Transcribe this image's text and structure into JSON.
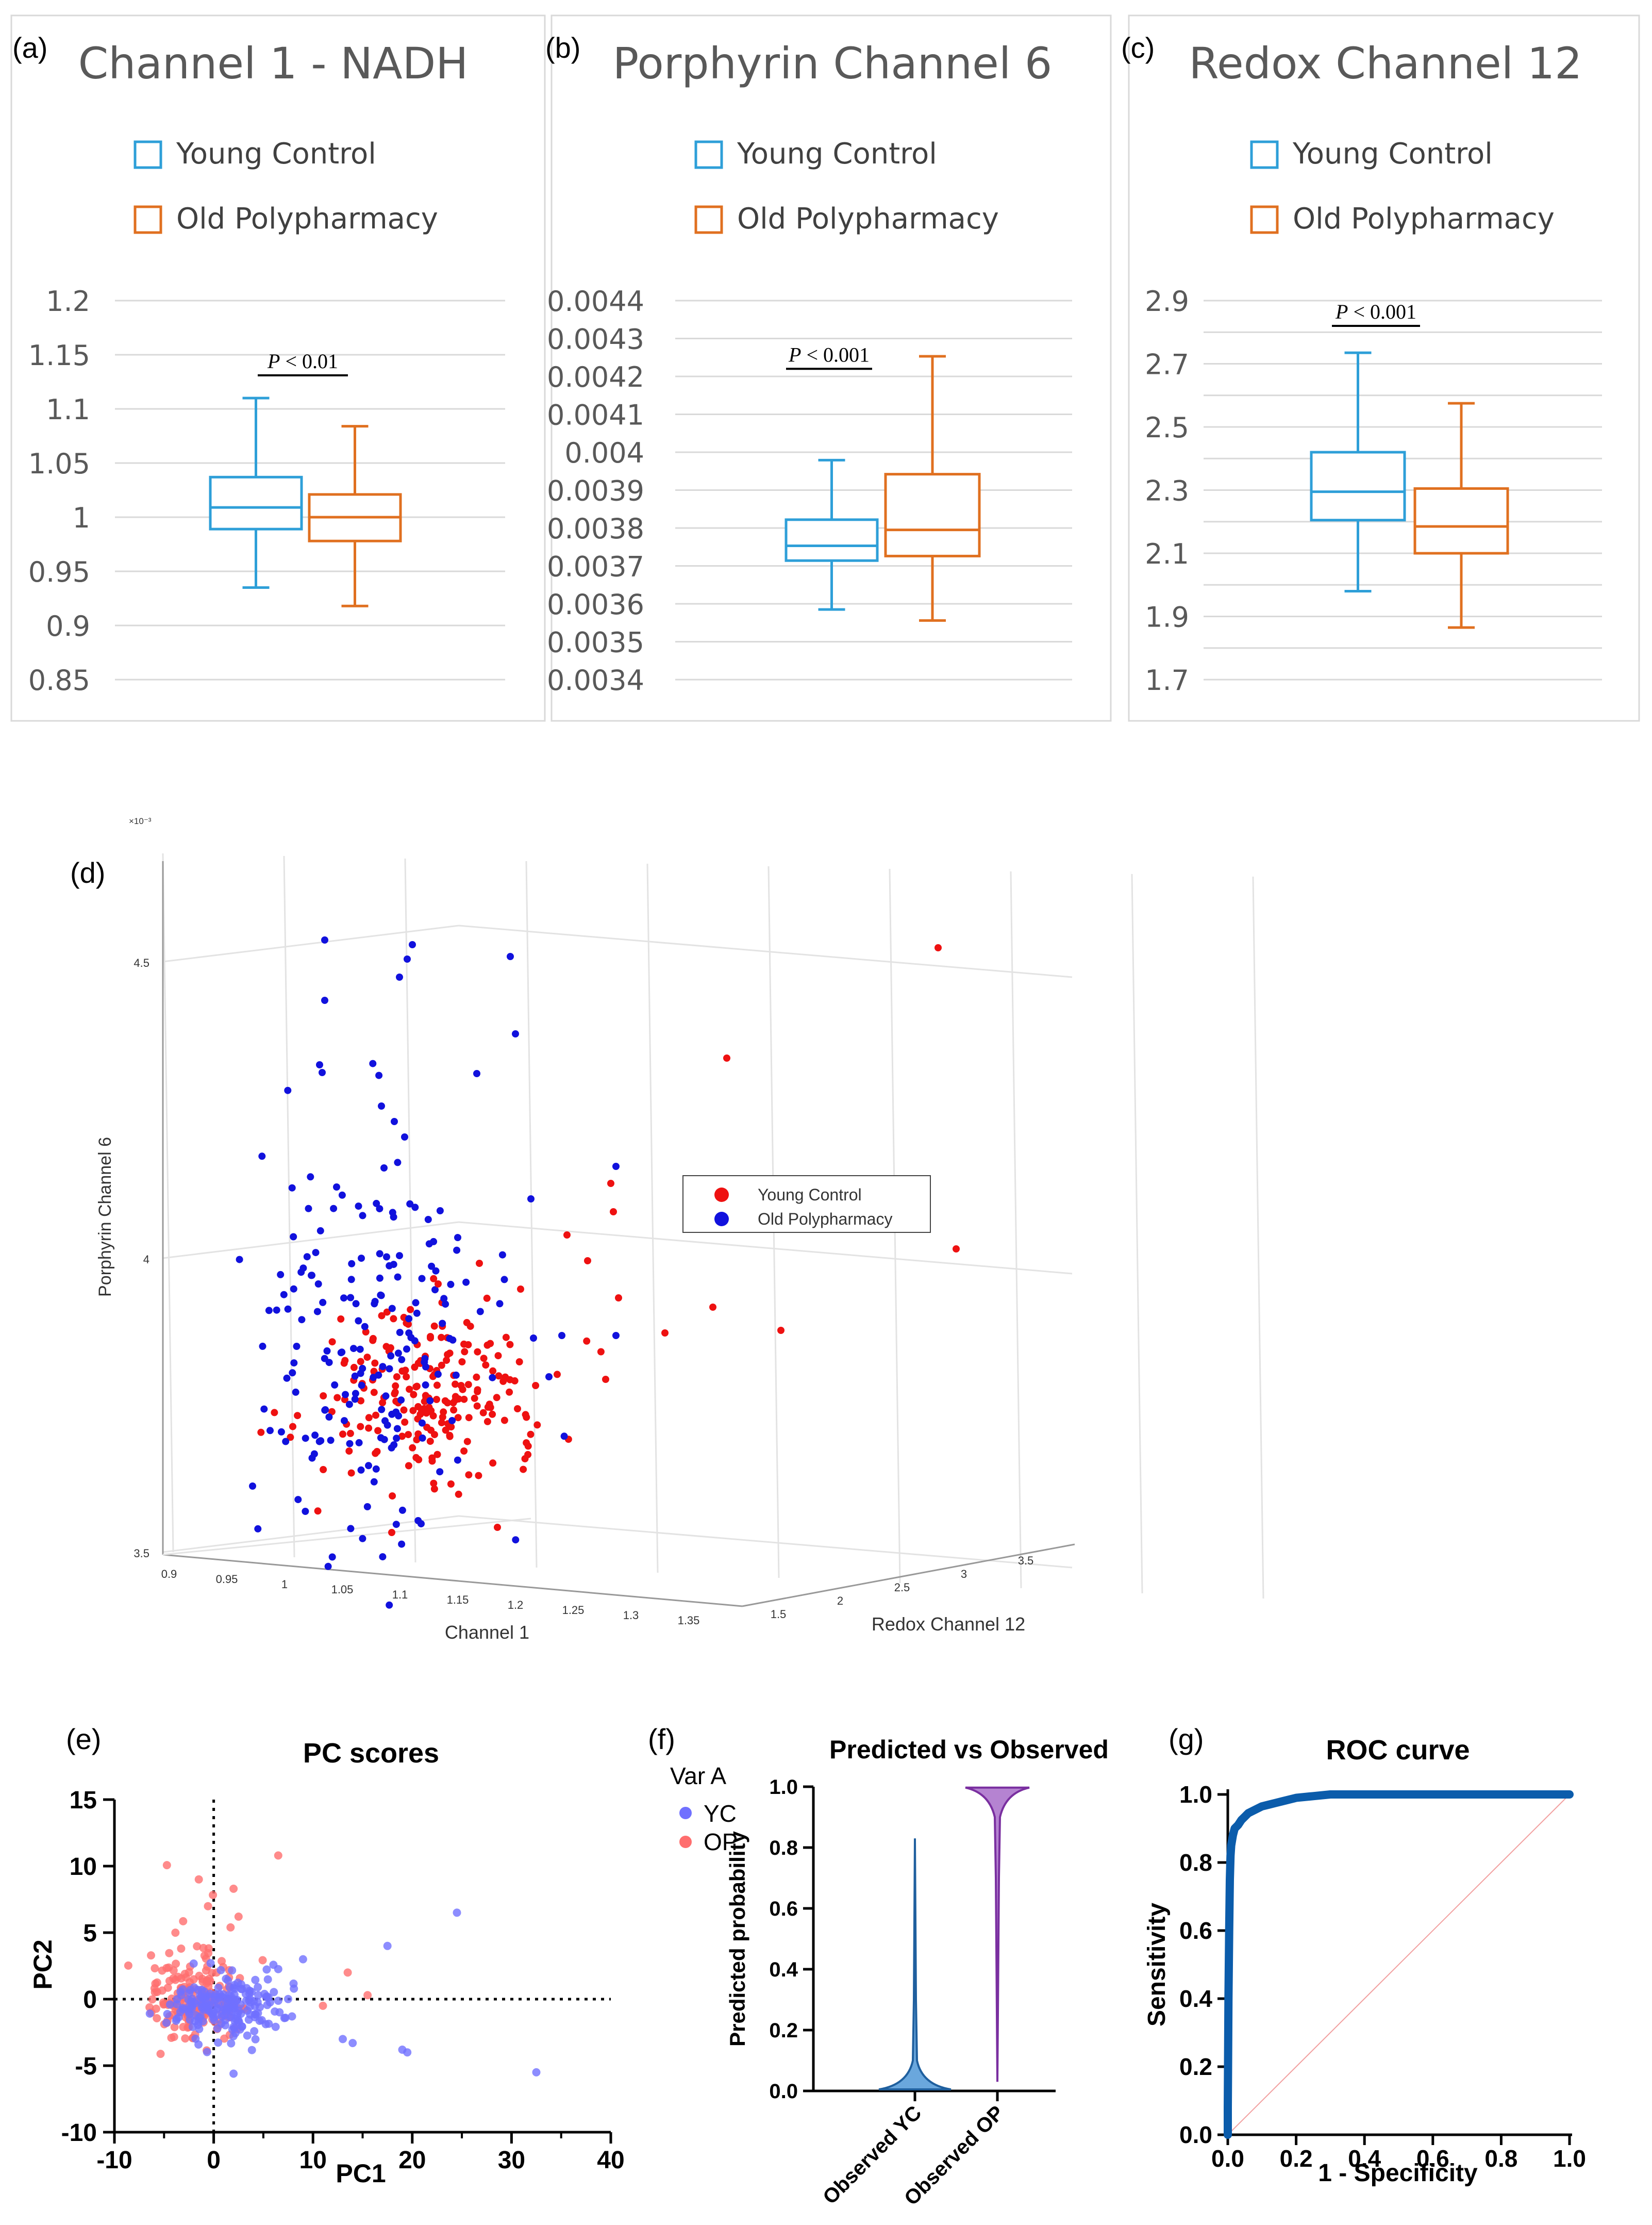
{
  "colors": {
    "young": "#2e9fd8",
    "old": "#e07020",
    "red": "#ee1111",
    "blue": "#1111dd",
    "yc": "#7070ff",
    "op": "#ff6e6e",
    "roc": "#0b5cab",
    "violet_yc": "#1f5f9e",
    "violet_op": "#7a2fa0"
  },
  "panels": {
    "a": "(a)",
    "b": "(b)",
    "c": "(c)",
    "d": "(d)",
    "e": "(e)",
    "f": "(f)",
    "g": "(g)"
  },
  "chart_data": [
    {
      "id": "a",
      "type": "box",
      "title": "Channel 1 - NADH",
      "legend": [
        "Young Control",
        "Old Polypharmacy"
      ],
      "yticks": [
        "1.2",
        "1.15",
        "1.1",
        "1.05",
        "1",
        "0.95",
        "0.9",
        "0.85"
      ],
      "ylim": [
        0.85,
        1.2
      ],
      "pvalue": {
        "text": "P < 0.01",
        "italic": "P",
        "rest": " < 0.01",
        "y": 1.131
      },
      "boxes": [
        {
          "name": "Young Control",
          "min": 0.935,
          "q1": 0.989,
          "median": 1.009,
          "q3": 1.037,
          "max": 1.11
        },
        {
          "name": "Old Polypharmacy",
          "min": 0.918,
          "q1": 0.978,
          "median": 1.0,
          "q3": 1.021,
          "max": 1.084
        }
      ]
    },
    {
      "id": "b",
      "type": "box",
      "title": "Porphyrin Channel 6",
      "legend": [
        "Young Control",
        "Old Polypharmacy"
      ],
      "yticks": [
        "0.0044",
        "0.0043",
        "0.0042",
        "0.0041",
        "0.004",
        "0.0039",
        "0.0038",
        "0.0037",
        "0.0036",
        "0.0035",
        "0.0034"
      ],
      "ylim": [
        0.0034,
        0.0044
      ],
      "pvalue": {
        "text": "P < 0.001",
        "italic": "P",
        "rest": " < 0.001",
        "y": 0.00422
      },
      "boxes": [
        {
          "name": "Young Control",
          "min": 0.003585,
          "q1": 0.003714,
          "median": 0.003753,
          "q3": 0.003822,
          "max": 0.003979
        },
        {
          "name": "Old Polypharmacy",
          "min": 0.003556,
          "q1": 0.003726,
          "median": 0.003795,
          "q3": 0.003942,
          "max": 0.004253
        }
      ]
    },
    {
      "id": "c",
      "type": "box",
      "title": "Redox Channel 12",
      "legend": [
        "Young Control",
        "Old Polypharmacy"
      ],
      "yticks": [
        "2.9",
        "2.7",
        "2.5",
        "2.3",
        "2.1",
        "1.9",
        "1.7"
      ],
      "ylim": [
        1.7,
        2.9
      ],
      "gridvals": [
        2.8,
        2.6,
        2.4,
        2.2,
        2.0,
        1.8
      ],
      "pvalue": {
        "text": "P < 0.001",
        "italic": "P",
        "rest": " < 0.001",
        "y": 2.82
      },
      "boxes": [
        {
          "name": "Young Control",
          "min": 1.98,
          "q1": 2.205,
          "median": 2.295,
          "q3": 2.42,
          "max": 2.735
        },
        {
          "name": "Old Polypharmacy",
          "min": 1.865,
          "q1": 2.1,
          "median": 2.185,
          "q3": 2.305,
          "max": 2.575
        }
      ]
    },
    {
      "id": "d",
      "type": "scatter3d",
      "xlabel": "Channel 1",
      "ylabel": "Redox Channel 12",
      "zlabel": "Porphyrin Channel 6",
      "xticks": [
        "0.9",
        "0.95",
        "1",
        "1.05",
        "1.1",
        "1.15",
        "1.2",
        "1.25",
        "1.3",
        "1.35"
      ],
      "yticks": [
        "1.5",
        "2",
        "2.5",
        "3",
        "3.5"
      ],
      "zticks": [
        "3.5",
        "4",
        "4.5"
      ],
      "zexp": "×10⁻³",
      "legend": [
        "Young Control",
        "Old Polypharmacy"
      ]
    },
    {
      "id": "e",
      "type": "scatter",
      "title": "PC scores",
      "xlabel": "PC1",
      "ylabel": "PC2",
      "xticks": [
        "-10",
        "0",
        "10",
        "20",
        "30",
        "40"
      ],
      "yticks": [
        "15",
        "10",
        "5",
        "0",
        "-5",
        "-10"
      ],
      "xlim": [
        -10,
        40
      ],
      "ylim": [
        -10,
        15
      ],
      "legend_title": "Var A",
      "legend": [
        "YC",
        "OP"
      ]
    },
    {
      "id": "f",
      "type": "violin",
      "title": "Predicted vs Observed",
      "ylabel": "Predicted probability",
      "categories": [
        "Observed YC",
        "Observed OP"
      ],
      "yticks": [
        "1.0",
        "0.8",
        "0.6",
        "0.4",
        "0.2",
        "0.0"
      ],
      "ylim": [
        0,
        1
      ]
    },
    {
      "id": "g",
      "type": "line",
      "title": "ROC curve",
      "xlabel": "1 - Specificity",
      "ylabel": "Sensitivity",
      "xticks": [
        "0.0",
        "0.2",
        "0.4",
        "0.6",
        "0.8",
        "1.0"
      ],
      "yticks": [
        "1.0",
        "0.8",
        "0.6",
        "0.4",
        "0.2",
        "0.0"
      ],
      "xlim": [
        0,
        1
      ],
      "ylim": [
        0,
        1
      ],
      "x": [
        0,
        0,
        0.002,
        0.004,
        0.006,
        0.008,
        0.01,
        0.015,
        0.02,
        0.03,
        0.04,
        0.05,
        0.06,
        0.08,
        0.1,
        0.12,
        0.14,
        0.16,
        0.2,
        0.25,
        0.3,
        0.4,
        0.5,
        0.6,
        0.8,
        1.0
      ],
      "y": [
        0,
        0.08,
        0.4,
        0.6,
        0.75,
        0.82,
        0.85,
        0.88,
        0.9,
        0.91,
        0.925,
        0.935,
        0.945,
        0.955,
        0.965,
        0.97,
        0.975,
        0.98,
        0.99,
        0.995,
        1.0,
        1.0,
        1.0,
        1.0,
        1.0,
        1.0
      ]
    }
  ]
}
